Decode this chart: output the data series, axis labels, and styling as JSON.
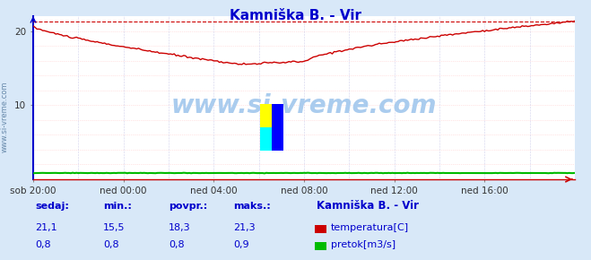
{
  "title": "Kamniška B. - Vir",
  "title_color": "#0000cc",
  "bg_color": "#d8e8f8",
  "plot_bg_color": "#ffffff",
  "grid_color_v": "#aaaadd",
  "grid_color_h_minor": "#ffcccc",
  "grid_color_h_major": "#ffaaaa",
  "xlim": [
    0,
    288
  ],
  "ylim": [
    0,
    22
  ],
  "ytick_positions": [
    10,
    20
  ],
  "ytick_labels": [
    "10",
    "20"
  ],
  "xtick_labels": [
    "sob 20:00",
    "ned 00:00",
    "ned 04:00",
    "ned 08:00",
    "ned 12:00",
    "ned 16:00"
  ],
  "xtick_positions": [
    0,
    48,
    96,
    144,
    192,
    240
  ],
  "temp_max_line": 21.3,
  "temp_color": "#cc0000",
  "flow_color": "#00bb00",
  "watermark_text": "www.si-vreme.com",
  "watermark_color": "#aaccee",
  "watermark_logo_yellow": "#ffff00",
  "watermark_logo_cyan": "#00ffff",
  "watermark_logo_blue": "#0000ff",
  "sidebar_text": "www.si-vreme.com",
  "sidebar_color": "#6688aa",
  "legend_station": "Kamniška B. - Vir",
  "legend_temp_label": "temperatura[C]",
  "legend_flow_label": "pretok[m3/s]",
  "stats_headers": [
    "sedaj:",
    "min.:",
    "povpr.:",
    "maks.:"
  ],
  "stats_temp": [
    "21,1",
    "15,5",
    "18,3",
    "21,3"
  ],
  "stats_flow": [
    "0,8",
    "0,8",
    "0,8",
    "0,9"
  ],
  "stats_color": "#0000cc",
  "axis_color": "#cc0000",
  "left_spine_color": "#0000cc",
  "bottom_spine_color": "#cc0000"
}
